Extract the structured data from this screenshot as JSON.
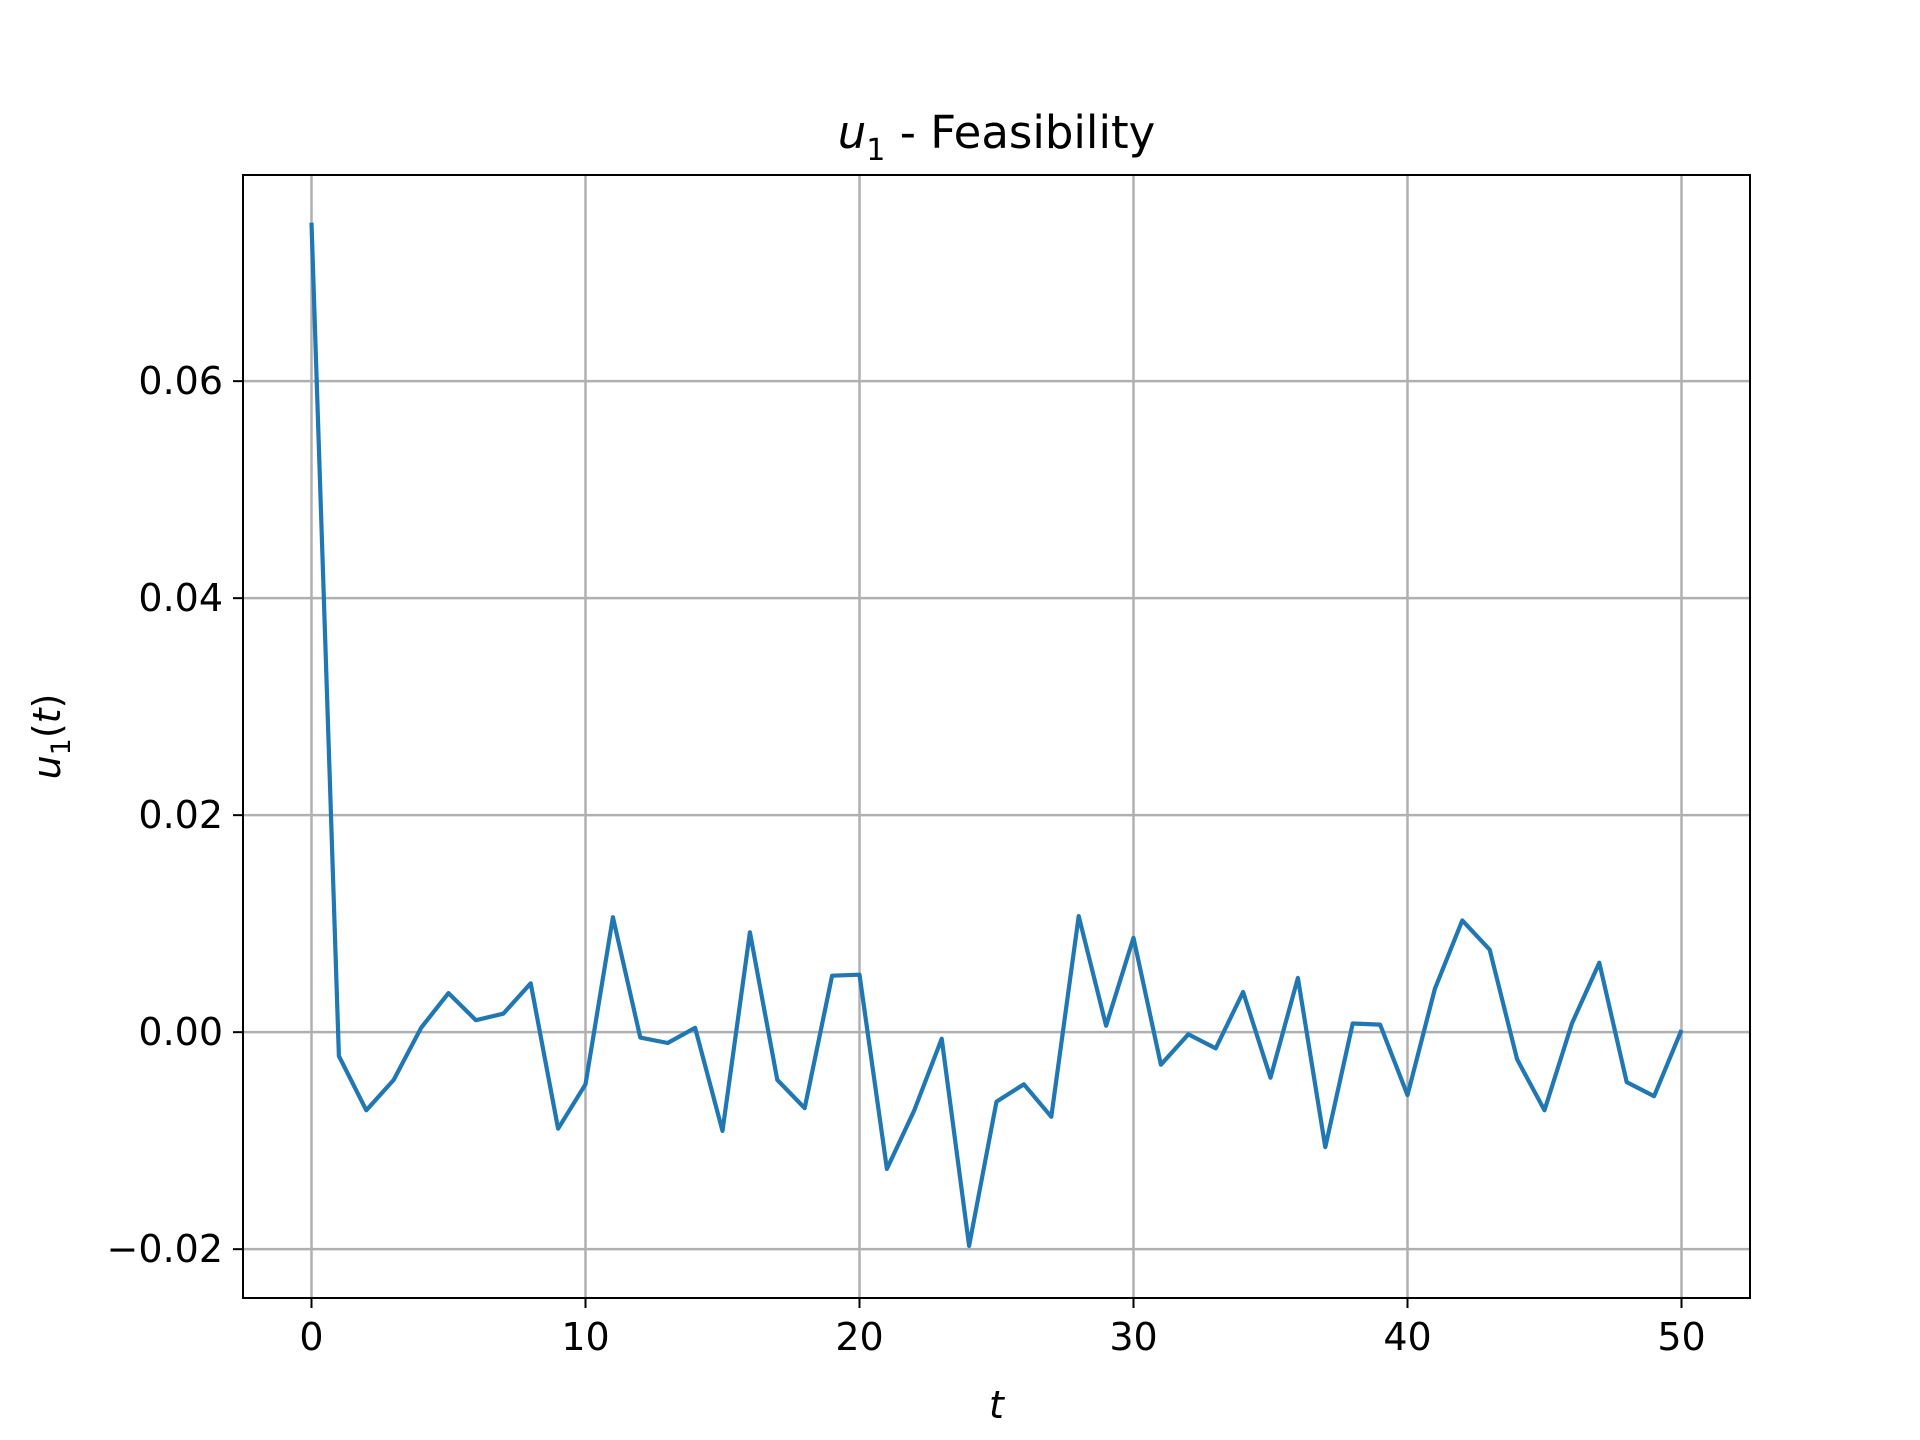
{
  "chart_data": {
    "type": "line",
    "title": {
      "var": "u",
      "sub": "1",
      "rest": " - Feasibility"
    },
    "xlabel": "t",
    "ylabel": {
      "var": "u",
      "sub": "1",
      "rest": "(t)"
    },
    "xlim": [
      -2.5,
      52.5
    ],
    "ylim": [
      -0.0245,
      0.079
    ],
    "xticks": [
      0,
      10,
      20,
      30,
      40,
      50
    ],
    "xtick_labels": [
      "0",
      "10",
      "20",
      "30",
      "40",
      "50"
    ],
    "yticks": [
      -0.02,
      0.0,
      0.02,
      0.04,
      0.06
    ],
    "ytick_labels": [
      "−0.02",
      "0.00",
      "0.02",
      "0.04",
      "0.06"
    ],
    "grid": true,
    "line_color": "#1f77b4",
    "series": [
      {
        "x": [
          0,
          1,
          2,
          3,
          4,
          5,
          6,
          7,
          8,
          9,
          10,
          11,
          12,
          13,
          14,
          15,
          16,
          17,
          18,
          19,
          20,
          21,
          22,
          23,
          24,
          25,
          26,
          27,
          28,
          29,
          30,
          31,
          32,
          33,
          34,
          35,
          36,
          37,
          38,
          39,
          40,
          41,
          42,
          43,
          44,
          45,
          46,
          47,
          48,
          49,
          50
        ],
        "values": [
          0.0746,
          -0.0022,
          -0.0072,
          -0.0044,
          0.0004,
          0.0036,
          0.0011,
          0.0017,
          0.0045,
          -0.0089,
          -0.0048,
          0.0106,
          -0.0005,
          -0.001,
          0.0004,
          -0.0091,
          0.0092,
          -0.0044,
          -0.007,
          0.0052,
          0.0053,
          -0.0126,
          -0.0072,
          -0.0006,
          -0.0197,
          -0.0064,
          -0.0048,
          -0.0078,
          0.0107,
          0.0006,
          0.0087,
          -0.003,
          -0.0002,
          -0.0015,
          0.0037,
          -0.0042,
          0.005,
          -0.0106,
          0.0008,
          0.0007,
          -0.0058,
          0.004,
          0.0103,
          0.0076,
          -0.0025,
          -0.0072,
          0.0008,
          0.0064,
          -0.0046,
          -0.0059,
          0.0002
        ]
      }
    ]
  }
}
